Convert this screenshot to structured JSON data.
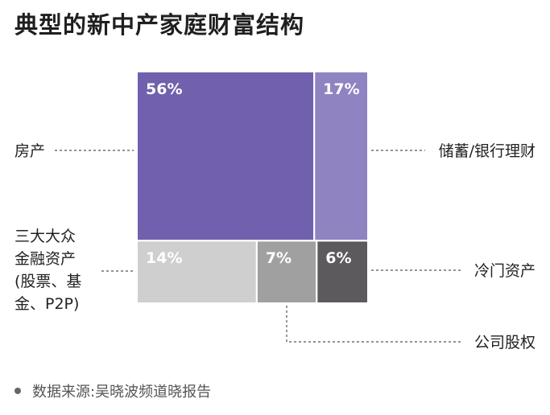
{
  "chart_data": {
    "type": "treemap",
    "title": "典型的新中产家庭财富结构",
    "source": "数据来源:吴晓波频道晓报告",
    "segments": [
      {
        "label": "56%",
        "value": 56,
        "color": "#7160ad"
      },
      {
        "label": "17%",
        "value": 17,
        "color": "#8f83c2"
      },
      {
        "label": "14%",
        "value": 14,
        "color": "#cfcfcf"
      },
      {
        "label": "7%",
        "value": 7,
        "color": "#a0a0a0"
      },
      {
        "label": "6%",
        "value": 6,
        "color": "#5c5a5d"
      }
    ],
    "categories": [
      {
        "lines": [
          "房产"
        ]
      },
      {
        "lines": [
          "储蓄/银行理财"
        ]
      },
      {
        "lines": [
          "三大大众",
          "金融资产",
          "(股票、基",
          "金、P2P)"
        ]
      },
      {
        "lines": [
          "冷门资产"
        ]
      },
      {
        "lines": [
          "公司股权"
        ]
      }
    ]
  }
}
